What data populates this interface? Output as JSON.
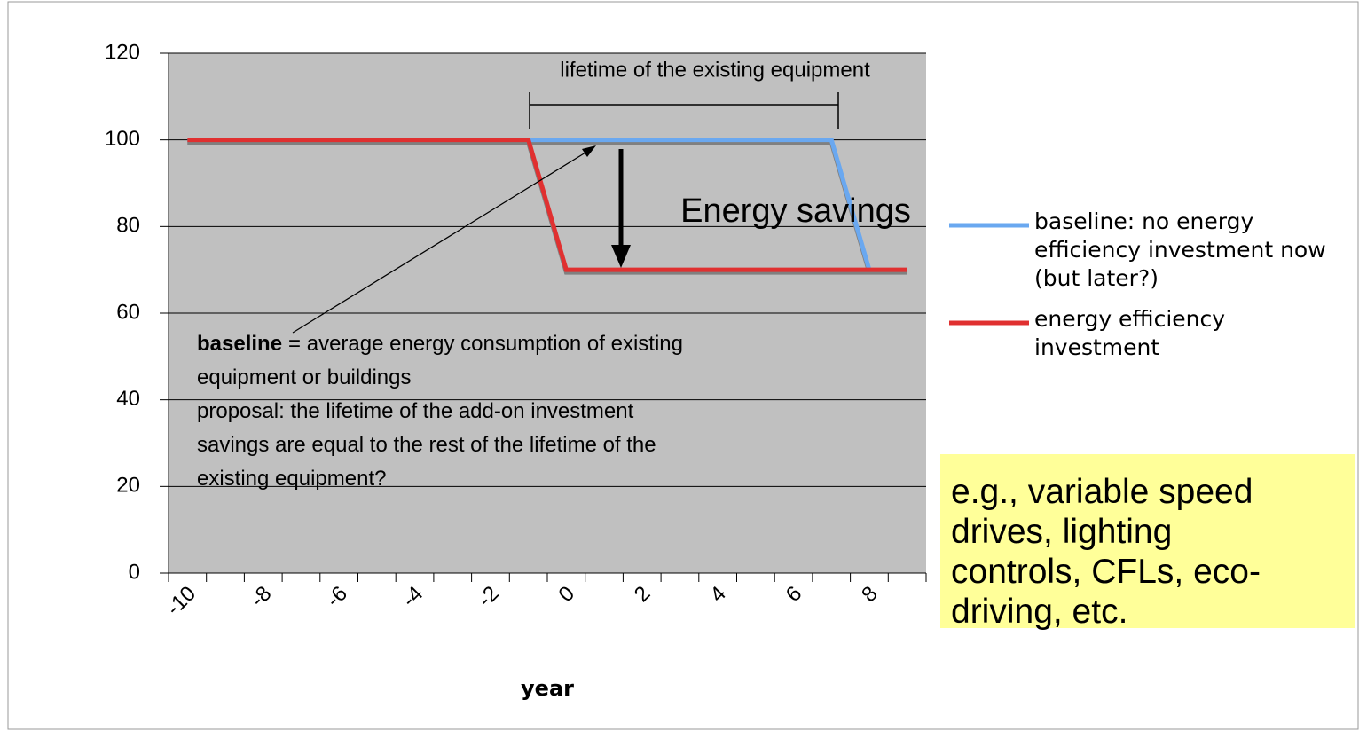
{
  "chart_data": {
    "type": "line",
    "x_label": "year",
    "categories": [
      "-10",
      null,
      "-8",
      null,
      "-6",
      null,
      "-4",
      null,
      "-2",
      null,
      "0",
      null,
      "2",
      null,
      "4",
      null,
      "6",
      null,
      "8",
      null
    ],
    "series": [
      {
        "name": "baseline: no energy efficiency investment now (but later?)",
        "color": "#6aa8f0",
        "values": [
          100,
          100,
          100,
          100,
          100,
          100,
          100,
          100,
          100,
          100,
          100,
          100,
          100,
          100,
          100,
          100,
          100,
          100,
          70,
          null
        ]
      },
      {
        "name": "energy efficiency investment",
        "color": "#e03030",
        "values": [
          100,
          100,
          100,
          100,
          100,
          100,
          100,
          100,
          100,
          100,
          70,
          70,
          70,
          70,
          70,
          70,
          70,
          70,
          70,
          70
        ]
      }
    ],
    "ylim": [
      0,
      120
    ],
    "yticks": [
      0,
      20,
      40,
      60,
      80,
      100,
      120
    ],
    "grid": true,
    "legend": "right",
    "annotations": {
      "lifetime": "lifetime of the existing equipment",
      "savings": "Energy savings",
      "note_bold": "baseline",
      "note_lines": [
        "= average energy consumption of existing",
        "equipment or buildings",
        "proposal: the lifetime of the add-on investment",
        "savings are equal to the rest of the lifetime of the",
        "existing equipment?"
      ],
      "examples": [
        "e.g., variable speed",
        "drives, lighting",
        "controls, CFLs, eco-",
        "driving, etc."
      ]
    }
  }
}
